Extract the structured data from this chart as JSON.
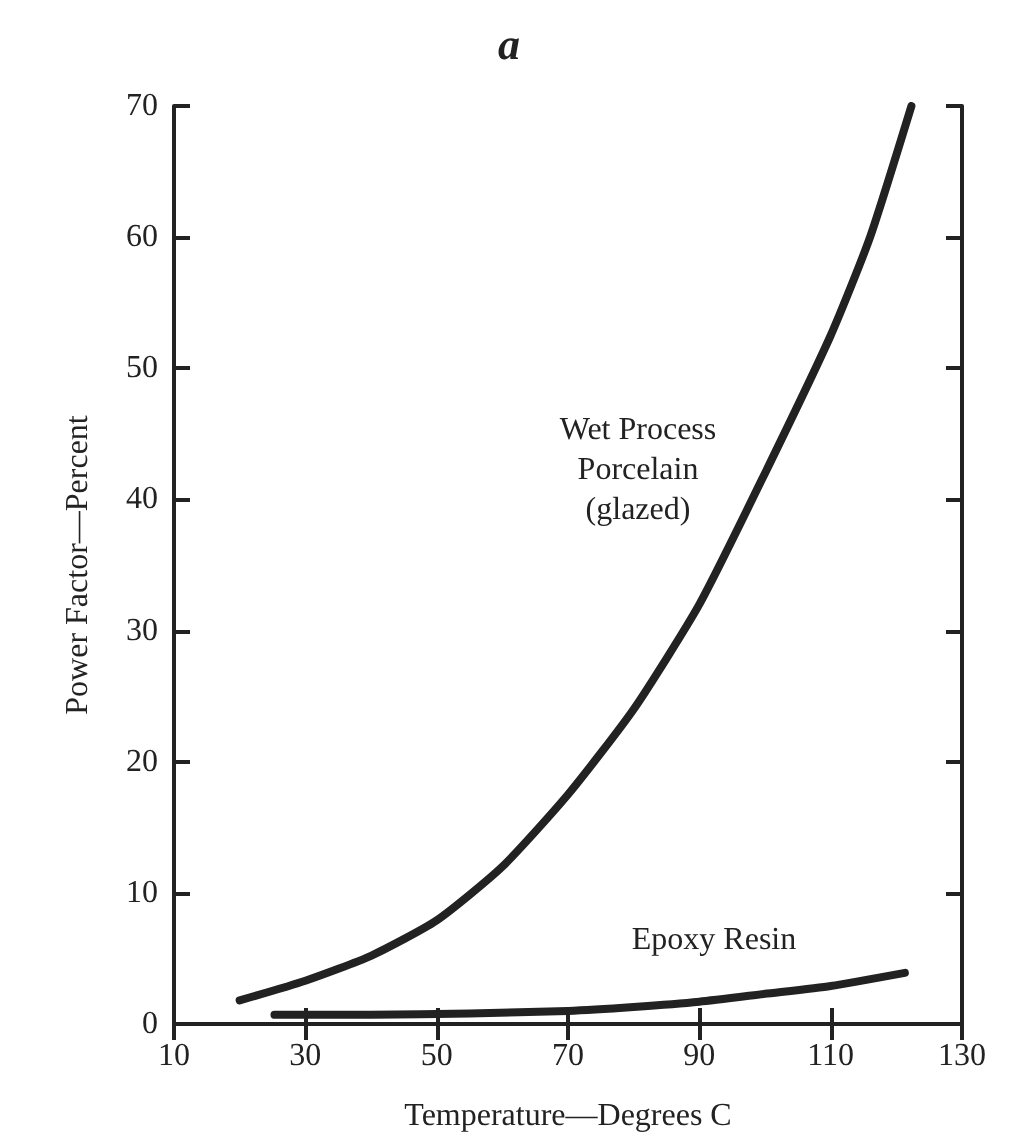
{
  "chart_data": {
    "type": "line",
    "title": "a",
    "xlabel": "Temperature—Degrees C",
    "ylabel": "Power Factor—Percent",
    "xlim": [
      10,
      130
    ],
    "xticks": [
      10,
      30,
      50,
      70,
      90,
      110,
      130
    ],
    "ylim": [
      0,
      70
    ],
    "yticks": [
      0,
      10,
      20,
      30,
      40,
      50,
      60,
      70
    ],
    "grid": false,
    "marker": "none",
    "line_style": "solid",
    "series": [
      {
        "color": "#222222",
        "x": [
          20,
          30,
          40,
          50,
          60,
          70,
          80,
          90,
          100,
          110,
          116,
          122.3
        ],
        "values": [
          1.8,
          3.3,
          5.2,
          7.9,
          12,
          17.5,
          24,
          32,
          42,
          52.5,
          60,
          70
        ]
      },
      {
        "color": "#222222",
        "x": [
          25.3,
          40,
          55,
          70,
          80,
          90,
          100,
          110,
          121.3
        ],
        "values": [
          0.7,
          0.7,
          0.8,
          1,
          1.3,
          1.7,
          2.3,
          2.9,
          3.9
        ]
      }
    ],
    "annotations": [
      "Wet Process\nPorcelain\n(glazed)",
      "Epoxy Resin"
    ]
  }
}
